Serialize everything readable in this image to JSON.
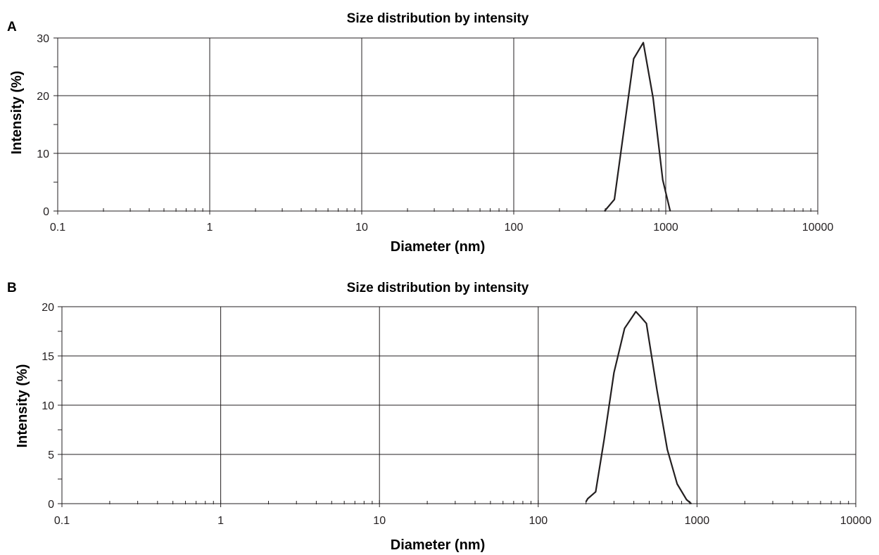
{
  "colors": {
    "line": "#231f20",
    "background": "#ffffff"
  },
  "chart_data": [
    {
      "panel": "A",
      "type": "line",
      "title": "Size distribution by intensity",
      "xlabel": "Diameter (nm)",
      "ylabel": "Intensity (%)",
      "xscale": "log",
      "xlim": [
        0.1,
        10000
      ],
      "ylim": [
        0,
        30
      ],
      "xticks": [
        "0.1",
        "1",
        "10",
        "100",
        "1000",
        "10000"
      ],
      "yticks": [
        "0",
        "10",
        "20",
        "30"
      ],
      "yminor_step": 5,
      "grid": true,
      "series": [
        {
          "x": [
            396,
            459,
            615,
            712,
            825,
            955,
            1070
          ],
          "y": [
            0,
            2.0,
            26.4,
            29.2,
            19.6,
            5.4,
            0
          ]
        }
      ]
    },
    {
      "panel": "B",
      "type": "line",
      "title": "Size distribution by intensity",
      "xlabel": "Diameter (nm)",
      "ylabel": "Intensity (%)",
      "xscale": "log",
      "xlim": [
        0.1,
        10000
      ],
      "ylim": [
        0,
        20
      ],
      "xticks": [
        "0.1",
        "1",
        "10",
        "100",
        "1000",
        "10000"
      ],
      "yticks": [
        "0",
        "5",
        "10",
        "15",
        "20"
      ],
      "yminor_step": 2.5,
      "grid": true,
      "series": [
        {
          "x": [
            200,
            205,
            230,
            260,
            300,
            350,
            412,
            440,
            480,
            560,
            650,
            750,
            860,
            920
          ],
          "y": [
            0.2,
            0.5,
            1.2,
            6.5,
            13.3,
            17.8,
            19.5,
            19.0,
            18.3,
            11.5,
            5.5,
            2.0,
            0.4,
            0
          ]
        }
      ]
    }
  ]
}
